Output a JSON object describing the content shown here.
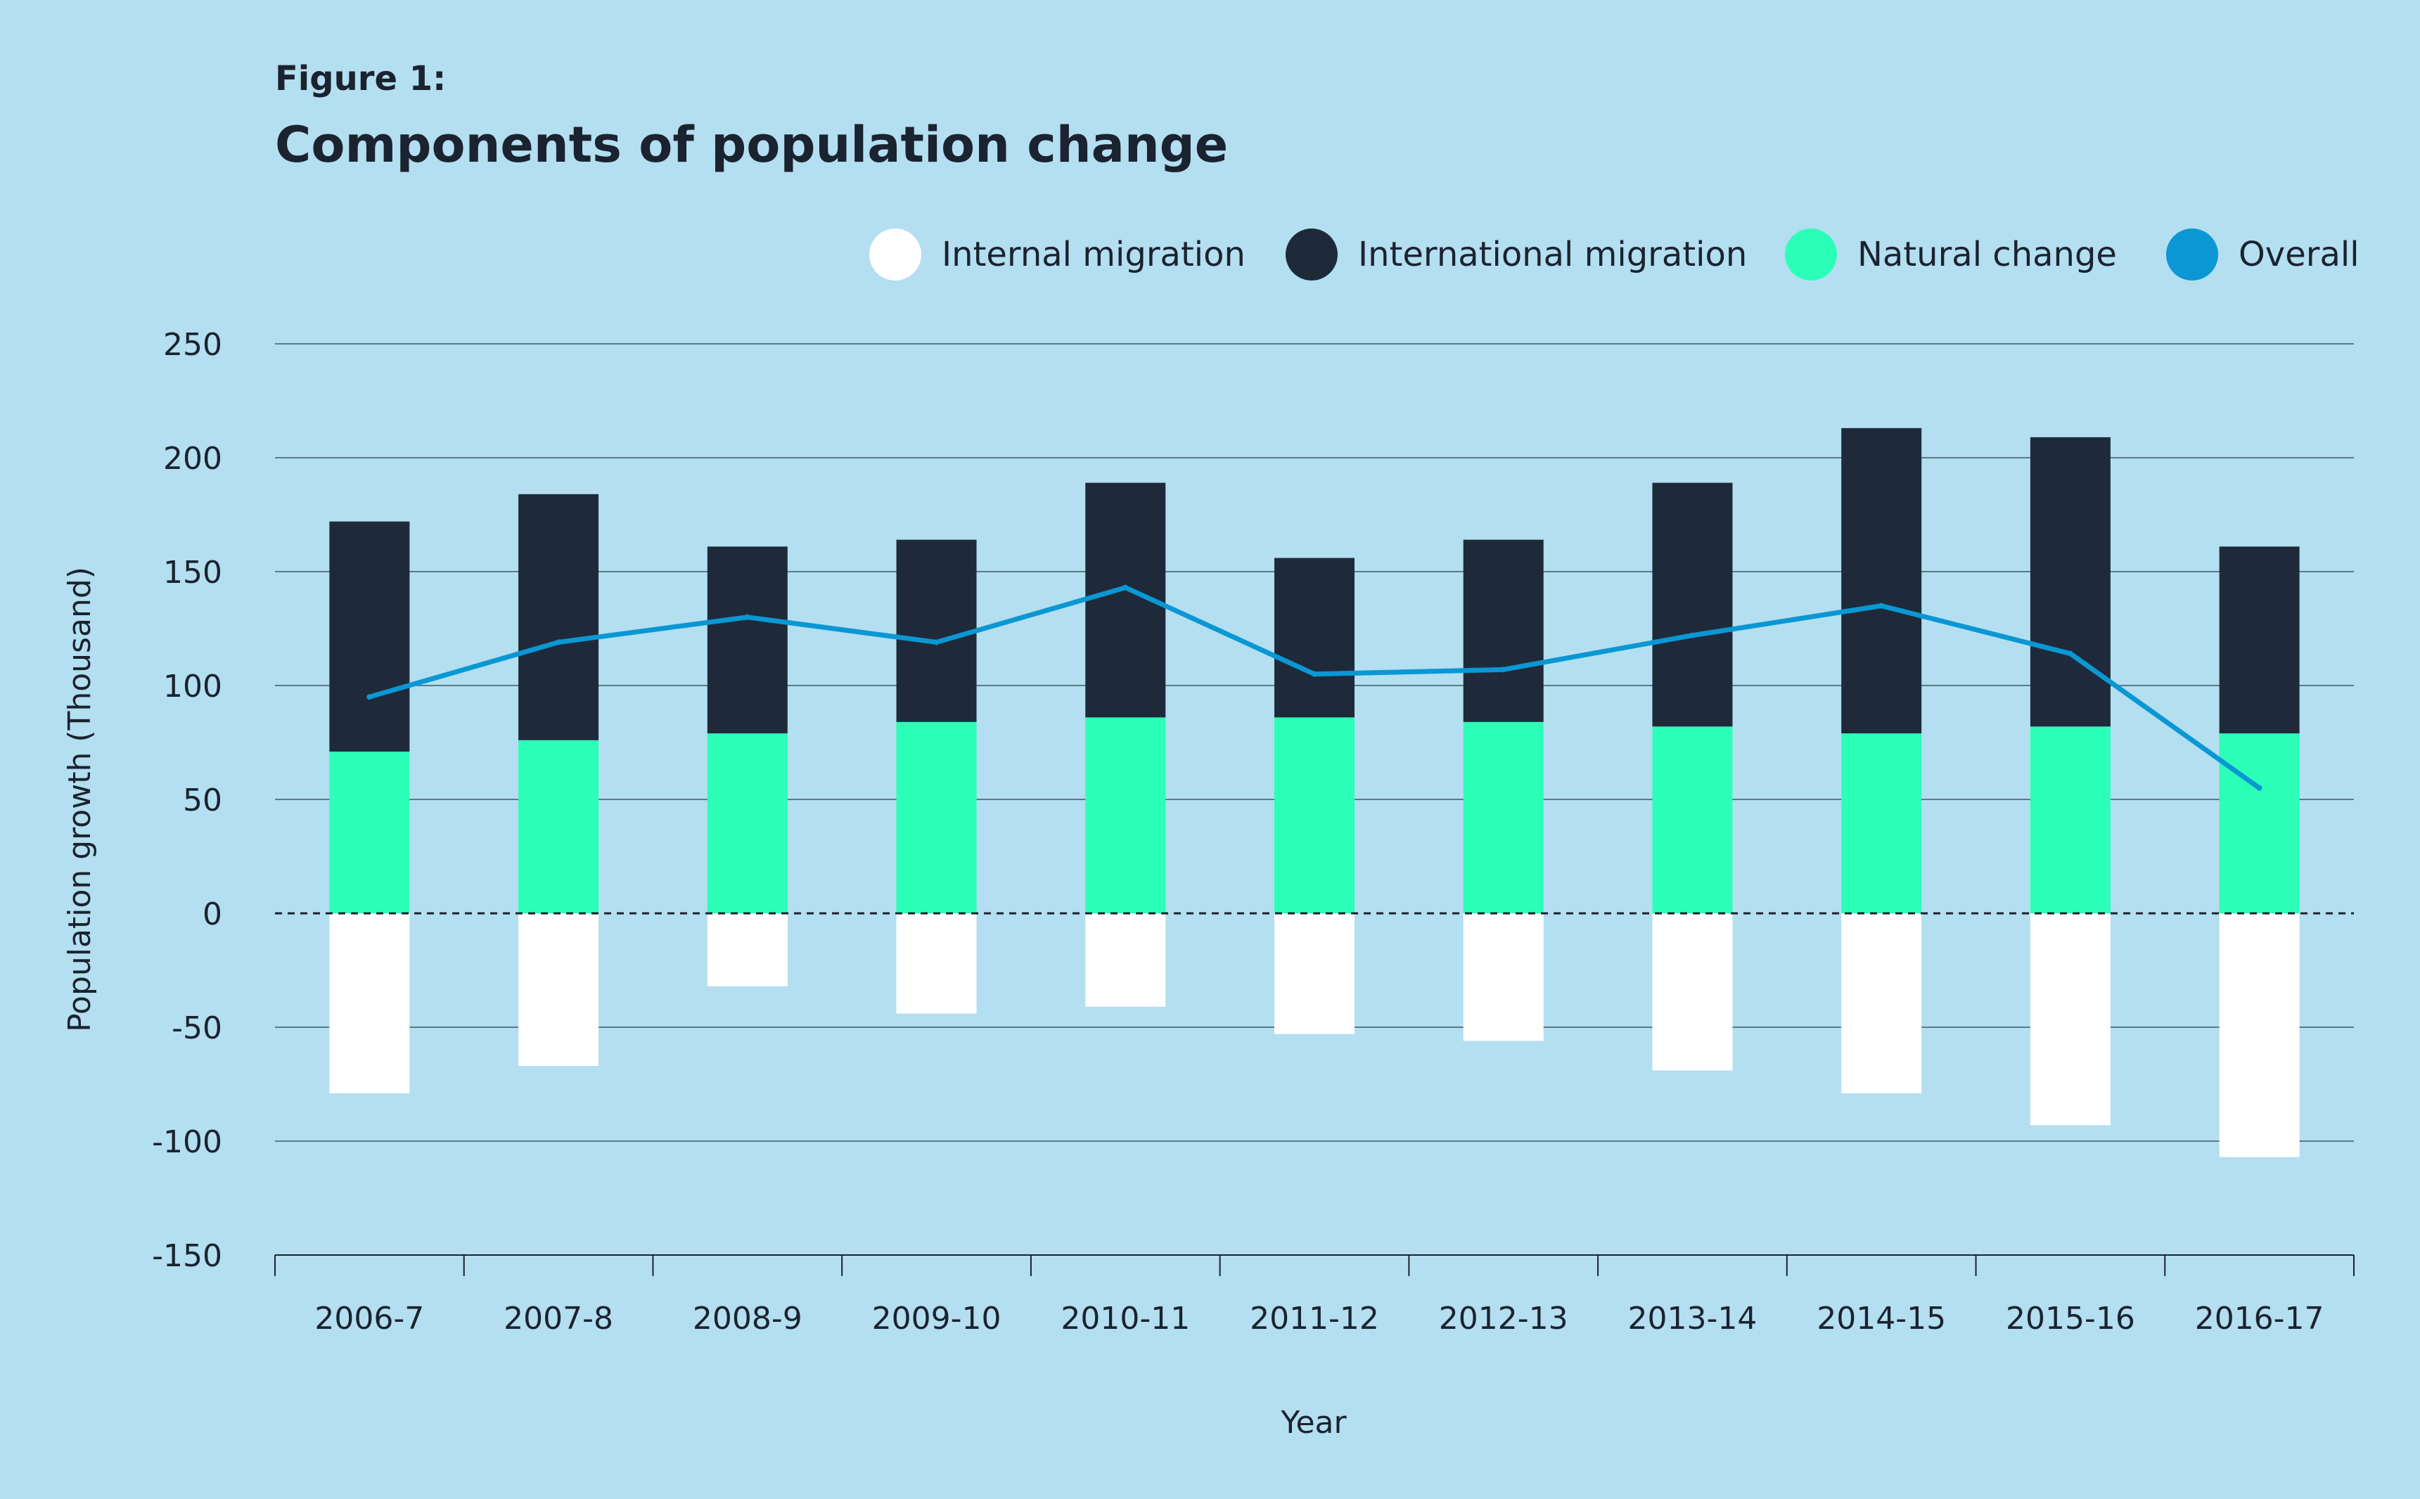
{
  "figure_label": "Figure 1:",
  "chart_data": {
    "type": "bar",
    "stacked": true,
    "title": "Components of population change",
    "xlabel": "Year",
    "ylabel": "Population growth (Thousand)",
    "ylim": [
      -150,
      250
    ],
    "yticks": [
      250,
      200,
      150,
      100,
      50,
      0,
      -50,
      -100,
      -150
    ],
    "grid": true,
    "legend_position": "top-right",
    "categories": [
      "2006-7",
      "2007-8",
      "2008-9",
      "2009-10",
      "2010-11",
      "2011-12",
      "2012-13",
      "2013-14",
      "2014-15",
      "2015-16",
      "2016-17"
    ],
    "series": [
      {
        "name": "Internal migration",
        "type": "bar",
        "color": "#ffffff",
        "values": [
          -79,
          -67,
          -32,
          -44,
          -41,
          -53,
          -56,
          -69,
          -79,
          -93,
          -107
        ]
      },
      {
        "name": "International migration",
        "type": "bar",
        "color": "#1e2a3a",
        "values": [
          101,
          108,
          82,
          80,
          103,
          70,
          80,
          107,
          134,
          127,
          82
        ]
      },
      {
        "name": "Natural change",
        "type": "bar",
        "color": "#2bffb8",
        "values": [
          71,
          76,
          79,
          84,
          86,
          86,
          84,
          82,
          79,
          82,
          79
        ]
      },
      {
        "name": "Overall",
        "type": "line",
        "color": "#0a97d4",
        "values": [
          95,
          119,
          130,
          119,
          143,
          105,
          107,
          122,
          135,
          114,
          55
        ]
      }
    ]
  }
}
